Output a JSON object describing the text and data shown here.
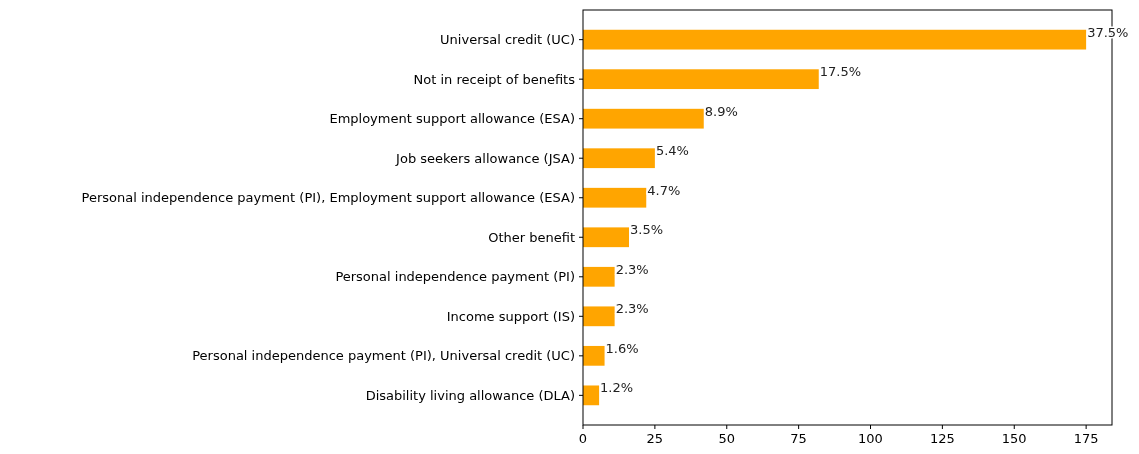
{
  "chart_data": {
    "type": "bar",
    "orientation": "horizontal",
    "categories": [
      "Universal credit (UC)",
      "Not in receipt of benefits",
      "Employment support allowance (ESA)",
      "Job seekers allowance (JSA)",
      "Personal independence payment (PI), Employment support allowance (ESA)",
      "Other benefit",
      "Personal independence payment (PI)",
      "Income support (IS)",
      "Personal independence payment (PI), Universal credit (UC)",
      "Disability living allowance (DLA)"
    ],
    "values": [
      175,
      82,
      42,
      25,
      22,
      16,
      11,
      11,
      7.5,
      5.6
    ],
    "annotations": [
      {
        "text": "37.5%",
        "x": 175,
        "y": "Universal credit (UC)"
      },
      {
        "text": "17.5%",
        "x": 82,
        "y": "Not in receipt of benefits"
      },
      {
        "text": "8.9%",
        "x": 42,
        "y": "Employment support allowance (ESA)"
      },
      {
        "text": "5.4%",
        "x": 25,
        "y": "Job seekers allowance (JSA)"
      },
      {
        "text": "4.7%",
        "x": 22,
        "y": "Personal independence payment (PI), Employment support allowance (ESA)"
      },
      {
        "text": "3.5%",
        "x": 16,
        "y": "Other benefit"
      },
      {
        "text": "2.3%",
        "x": 11,
        "y": "Personal independence payment (PI)"
      },
      {
        "text": "2.3%",
        "x": 11,
        "y": "Income support (IS)"
      },
      {
        "text": "1.6%",
        "x": 7.5,
        "y": "Personal independence payment (PI), Universal credit (UC)"
      },
      {
        "text": "1.2%",
        "x": 5.6,
        "y": "Disability living allowance (DLA)"
      }
    ],
    "color": "#ffa500",
    "xlim": [
      0,
      184
    ],
    "xticks": [
      0,
      25,
      50,
      75,
      100,
      125,
      150,
      175
    ],
    "grid": false
  }
}
